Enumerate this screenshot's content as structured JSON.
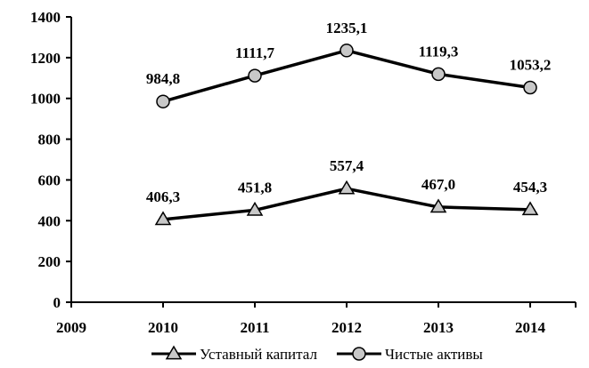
{
  "chart_data": {
    "type": "line",
    "x": [
      "2009",
      "2010",
      "2011",
      "2012",
      "2013",
      "2014"
    ],
    "ylim": [
      0,
      1400
    ],
    "y_ticks": [
      "0",
      "200",
      "400",
      "600",
      "800",
      "1000",
      "1200",
      "1400"
    ],
    "grid": false,
    "legend_position": "bottom",
    "series": [
      {
        "name": "Уставный капитал",
        "marker": "triangle",
        "color": "#000000",
        "marker_fill": "#c8c8c8",
        "x": [
          "2010",
          "2011",
          "2012",
          "2013",
          "2014"
        ],
        "values": [
          406.3,
          451.8,
          557.4,
          467.0,
          454.3
        ],
        "labels": [
          "406,3",
          "451,8",
          "557,4",
          "467,0",
          "454,3"
        ]
      },
      {
        "name": "Чистые активы",
        "marker": "circle",
        "color": "#000000",
        "marker_fill": "#c8c8c8",
        "x": [
          "2010",
          "2011",
          "2012",
          "2013",
          "2014"
        ],
        "values": [
          984.8,
          1111.7,
          1235.1,
          1119.3,
          1053.2
        ],
        "labels": [
          "984,8",
          "1111,7",
          "1235,1",
          "1119,3",
          "1053,2"
        ]
      }
    ]
  }
}
